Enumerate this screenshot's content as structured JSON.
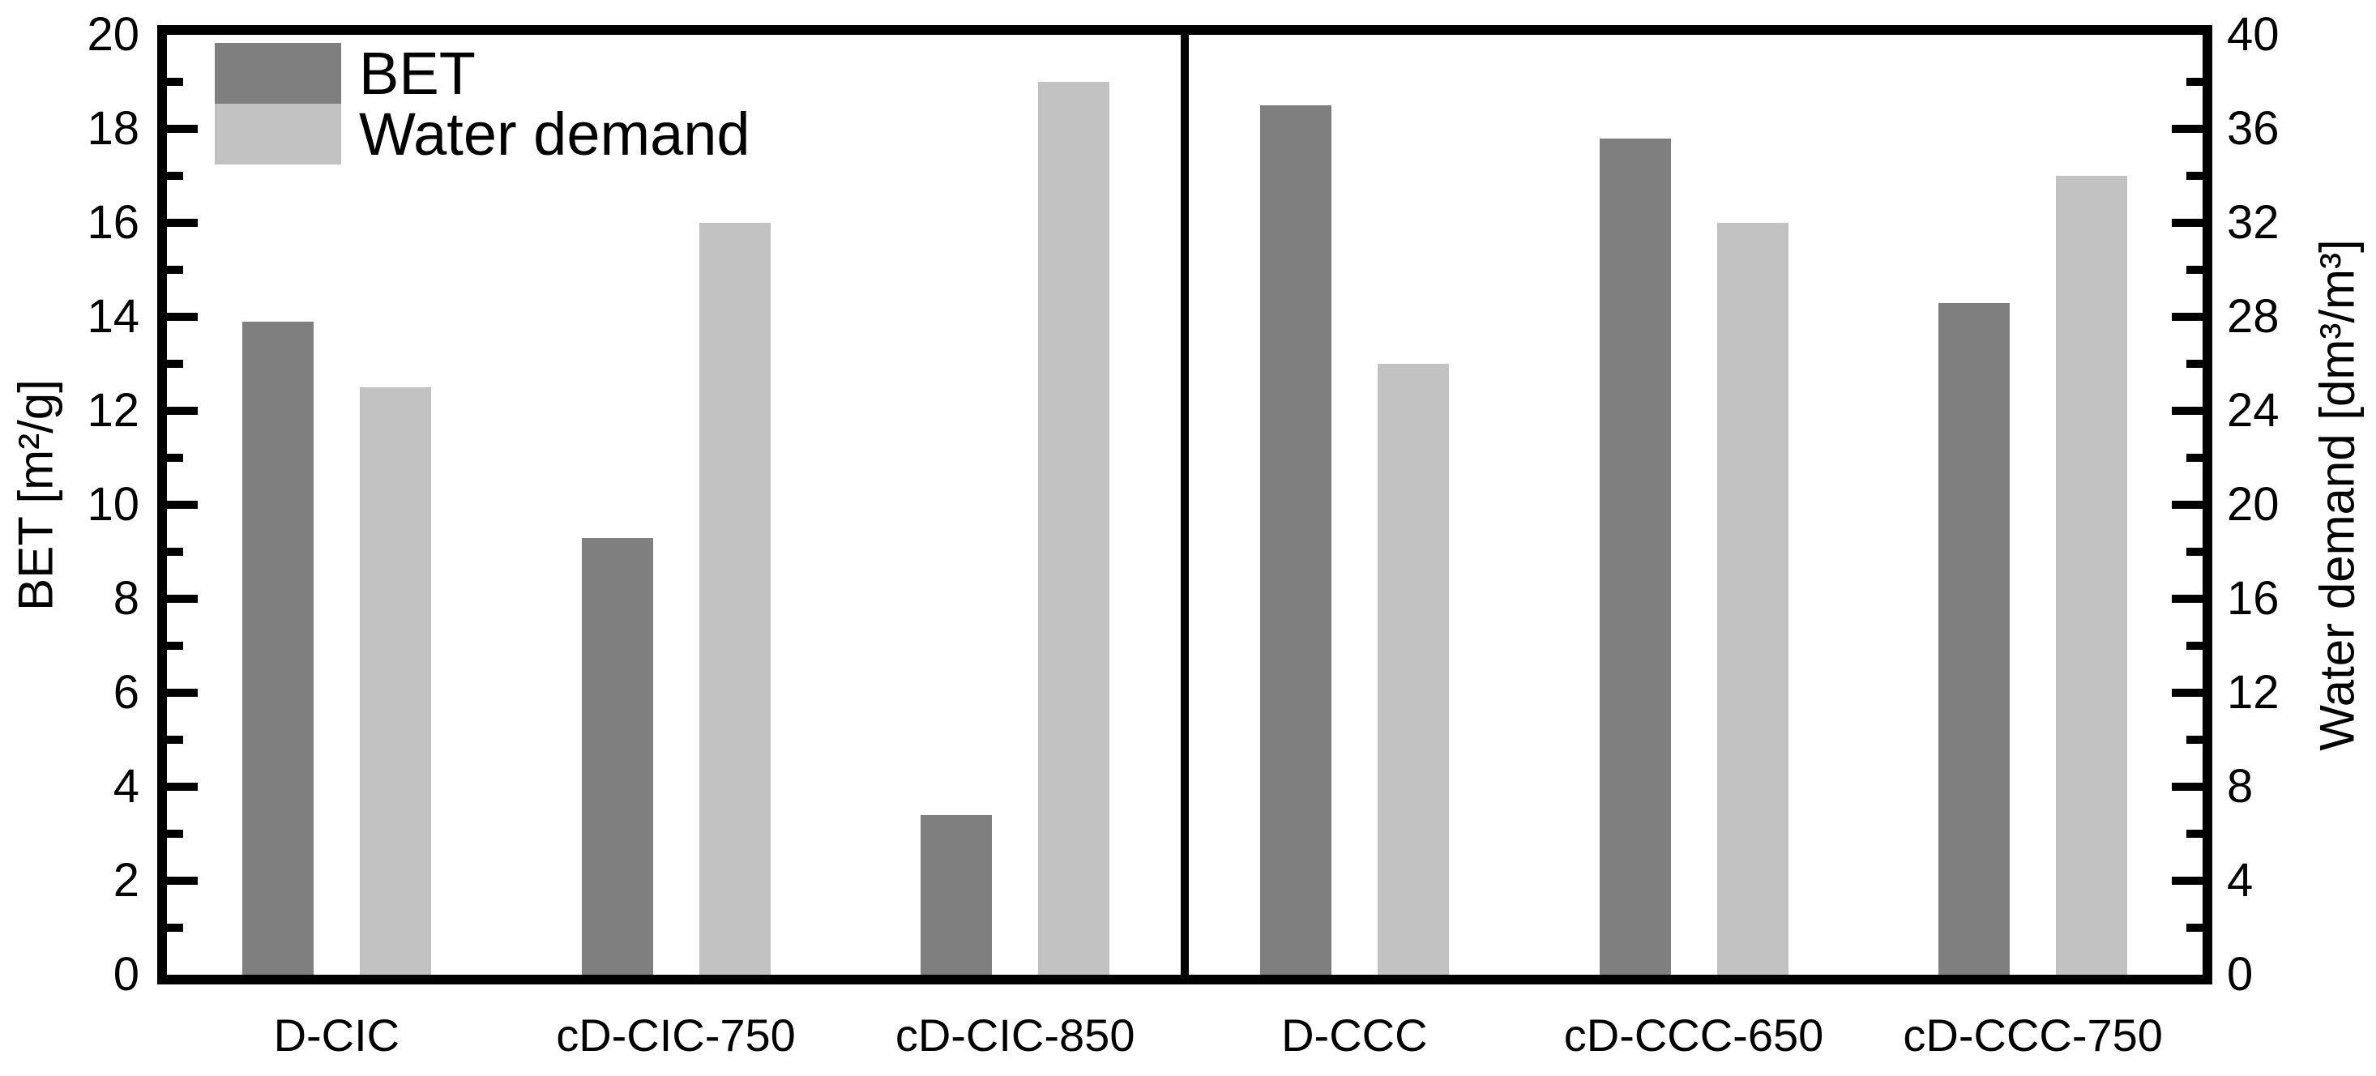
{
  "chart_data": {
    "type": "bar",
    "title": "",
    "categories": [
      "D-CIC",
      "cD-CIC-750",
      "cD-CIC-850",
      "D-CCC",
      "cD-CCC-650",
      "cD-CCC-750"
    ],
    "series": [
      {
        "name": "BET",
        "axis": "left",
        "color": "#7f7f7f",
        "values": [
          13.9,
          9.3,
          3.4,
          18.5,
          17.8,
          14.3
        ]
      },
      {
        "name": "Water demand",
        "axis": "right",
        "color": "#c2c2c2",
        "values": [
          25,
          32,
          38,
          26,
          32,
          34
        ]
      }
    ],
    "left_axis": {
      "label": "BET [m²/g]",
      "min": 0,
      "max": 20,
      "major_step": 2,
      "minor_step": 1,
      "ticks": [
        0,
        2,
        4,
        6,
        8,
        10,
        12,
        14,
        16,
        18,
        20
      ]
    },
    "right_axis": {
      "label": "Water demand [dm³/m³]",
      "min": 0,
      "max": 40,
      "major_step": 4,
      "minor_step": 2,
      "ticks": [
        0,
        4,
        8,
        12,
        16,
        20,
        24,
        28,
        32,
        36,
        40
      ]
    },
    "legend_position": "top-left",
    "panel_divider_after_category_index": 2,
    "grid": false,
    "frame_color": "#000000",
    "background_color": "#ffffff"
  }
}
